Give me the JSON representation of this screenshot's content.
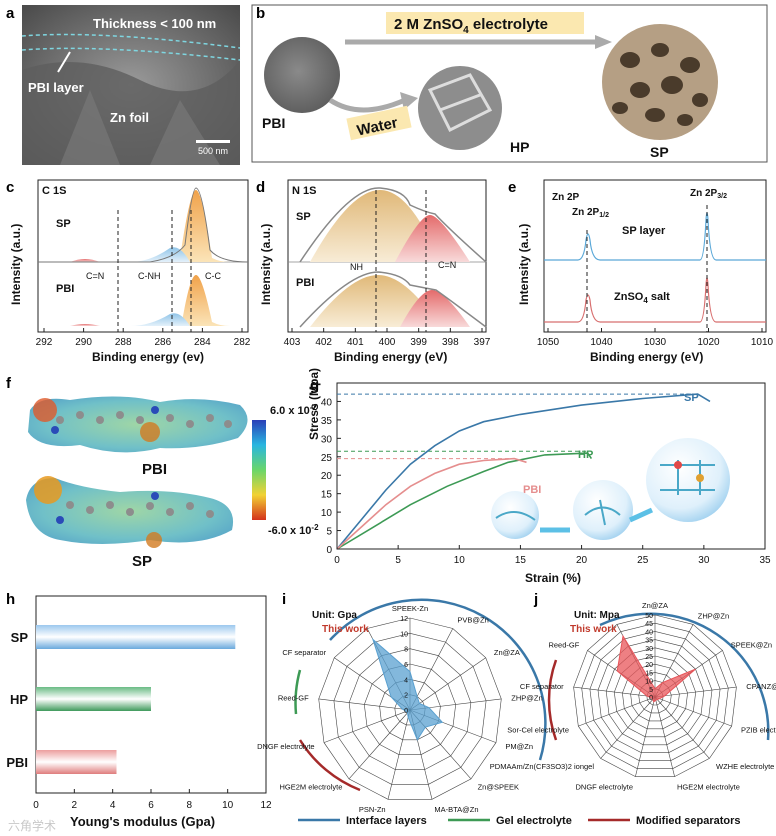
{
  "panels": {
    "a": {
      "letter": "a",
      "thickness": "Thickness < 100 nm",
      "pbi_layer": "PBI layer",
      "zn_foil": "Zn foil",
      "scale": "500 nm"
    },
    "b": {
      "letter": "b",
      "electrolyte": "2 M ZnSO",
      "electrolyte_sub": "4",
      "electrolyte_tail": " electrolyte",
      "water": "Water",
      "pbi": "PBI",
      "hp": "HP",
      "sp": "SP"
    },
    "c": {
      "letter": "c",
      "title": "C 1S",
      "sp": "SP",
      "pbi": "PBI",
      "ylabel": "Intensity (a.u.)",
      "xlabel": "Binding energy (ev)",
      "ticks": [
        "292",
        "290",
        "288",
        "286",
        "284",
        "282"
      ],
      "peaks": [
        "C=N",
        "C-NH",
        "C-C"
      ]
    },
    "d": {
      "letter": "d",
      "title": "N 1S",
      "sp": "SP",
      "pbi": "PBI",
      "ylabel": "Intensity (a.u.)",
      "xlabel": "Binding energy (eV)",
      "ticks": [
        "403",
        "402",
        "401",
        "400",
        "399",
        "398",
        "397"
      ],
      "peaks": [
        "NH",
        "C=N"
      ]
    },
    "e": {
      "letter": "e",
      "ylabel": "Intensity (a.u.)",
      "xlabel": "Binding energy (eV)",
      "ticks": [
        "1050",
        "1040",
        "1030",
        "1020",
        "1010"
      ],
      "zn2p": "Zn 2P",
      "p12": "Zn 2P",
      "p12_sub": "1/2",
      "p32": "Zn 2P",
      "p32_sub": "3/2",
      "sp_layer": "SP layer",
      "salt": "ZnSO",
      "salt_sub": "4",
      "salt_tail": " salt"
    },
    "f": {
      "letter": "f",
      "pbi": "PBI",
      "sp": "SP",
      "max": "6.0 x 10",
      "max_exp": "-2",
      "min": "-6.0 x 10",
      "min_exp": "-2"
    },
    "g": {
      "letter": "g",
      "ylabel": "Stress (Mpa)",
      "xlabel": "Strain (%)",
      "labels": [
        "SP",
        "HP",
        "PBI"
      ],
      "xticks": [
        "0",
        "5",
        "10",
        "15",
        "20",
        "25",
        "30",
        "35"
      ],
      "yticks": [
        "0",
        "5",
        "10",
        "15",
        "20",
        "25",
        "30",
        "35",
        "40"
      ]
    },
    "h": {
      "letter": "h",
      "xlabel": "Young's modulus (Gpa)",
      "xticks": [
        "0",
        "2",
        "4",
        "6",
        "8",
        "10",
        "12"
      ]
    },
    "i": {
      "letter": "i",
      "unit": "Unit: Gpa",
      "this_work": "This work",
      "rticks": [
        "12",
        "10",
        "8",
        "6",
        "4",
        "2",
        "0"
      ],
      "spokes": [
        "SPEEK-Zn",
        "PVB@Zn",
        "Zn@ZA",
        "ZHP@Zn",
        "PM@Zn",
        "Zn@SPEEK",
        "MA-BTA@Zn",
        "PSN-Zn",
        "HGE2M electrolyte",
        "DNGF electrolyte",
        "Reed-GF",
        "CF separator"
      ]
    },
    "j": {
      "letter": "j",
      "unit": "Unit: Mpa",
      "this_work": "This work",
      "rticks": [
        "50",
        "45",
        "40",
        "35",
        "30",
        "25",
        "20",
        "15",
        "10",
        "5",
        "0"
      ],
      "spokes": [
        "Zn@ZA",
        "ZHP@Zn",
        "SPEEK@Zn",
        "CPANZ@Zn",
        "PZIB electrolyte",
        "WZHE electrolyte",
        "HGE2M electrolyte",
        "DNGF electrolyte",
        "PDMAAm/Zn(CF3SO3)2 iongel",
        "Sor-Cel electrolyte",
        "CF separator",
        "Reed-GF"
      ]
    },
    "legend": [
      "Interface layers",
      "Gel electrolyte",
      "Modified separators"
    ],
    "watermark": "六角学术"
  },
  "chart_data": [
    {
      "type": "line",
      "id": "g",
      "title": "",
      "xlabel": "Strain (%)",
      "ylabel": "Stress (Mpa)",
      "xlim": [
        0,
        35
      ],
      "ylim": [
        0,
        45
      ],
      "series": [
        {
          "name": "SP",
          "color": "#3a78a8",
          "points": [
            [
              0,
              0
            ],
            [
              2,
              8
            ],
            [
              4,
              16
            ],
            [
              6,
              23
            ],
            [
              8,
              28
            ],
            [
              10,
              32
            ],
            [
              12,
              34.5
            ],
            [
              15,
              36.5
            ],
            [
              20,
              39
            ],
            [
              25,
              40.8
            ],
            [
              29.5,
              42
            ],
            [
              30.5,
              40
            ]
          ]
        },
        {
          "name": "HP",
          "color": "#3d9a55",
          "points": [
            [
              0,
              0
            ],
            [
              3,
              6
            ],
            [
              6,
              12
            ],
            [
              9,
              17
            ],
            [
              12,
              21
            ],
            [
              14,
              23.5
            ],
            [
              17,
              25.5
            ],
            [
              20.5,
              26
            ],
            [
              20.8,
              24.5
            ]
          ]
        },
        {
          "name": "PBI",
          "color": "#e58e8e",
          "points": [
            [
              0,
              0
            ],
            [
              2,
              6
            ],
            [
              4,
              12
            ],
            [
              6,
              17
            ],
            [
              8,
              20.5
            ],
            [
              10,
              23
            ],
            [
              12,
              24
            ],
            [
              14.5,
              24.5
            ],
            [
              15.5,
              23.5
            ]
          ]
        }
      ],
      "plateaus": [
        {
          "name": "SP",
          "y": 42
        },
        {
          "name": "HP",
          "y": 26.5
        },
        {
          "name": "PBI",
          "y": 24.5
        }
      ]
    },
    {
      "type": "bar",
      "id": "h",
      "orientation": "horizontal",
      "categories": [
        "SP",
        "HP",
        "PBI"
      ],
      "values": [
        10.4,
        6.0,
        4.2
      ],
      "colors": [
        "#6aa9dd",
        "#4aa367",
        "#e58a8a"
      ],
      "xlabel": "Young's modulus (Gpa)",
      "xlim": [
        0,
        12
      ]
    },
    {
      "type": "radar",
      "id": "i",
      "unit": "Gpa",
      "rmax": 12,
      "spokes": [
        "SPEEK-Zn",
        "PVB@Zn",
        "Zn@ZA",
        "ZHP@Zn",
        "PM@Zn",
        "Zn@SPEEK",
        "MA-BTA@Zn",
        "PSN-Zn",
        "HGE2M electrolyte",
        "DNGF electrolyte",
        "Reed-GF",
        "CF separator",
        "This work"
      ],
      "values": [
        5,
        2,
        1.5,
        2.5,
        4.5,
        3,
        4,
        1,
        0.5,
        0.5,
        1,
        3,
        10.4
      ]
    },
    {
      "type": "radar",
      "id": "j",
      "unit": "Mpa",
      "rmax": 50,
      "spokes": [
        "Zn@ZA",
        "ZHP@Zn",
        "SPEEK@Zn",
        "CPANZ@Zn",
        "PZIB electrolyte",
        "WZHE electrolyte",
        "HGE2M electrolyte",
        "DNGF electrolyte",
        "PDMAAm/Zn(CF3SO3)2 iongel",
        "Sor-Cel electrolyte",
        "CF separator",
        "Reed-GF",
        "This work"
      ],
      "values": [
        5,
        10,
        30,
        6,
        3,
        2,
        2,
        3,
        2,
        2,
        5,
        28,
        42
      ]
    }
  ]
}
